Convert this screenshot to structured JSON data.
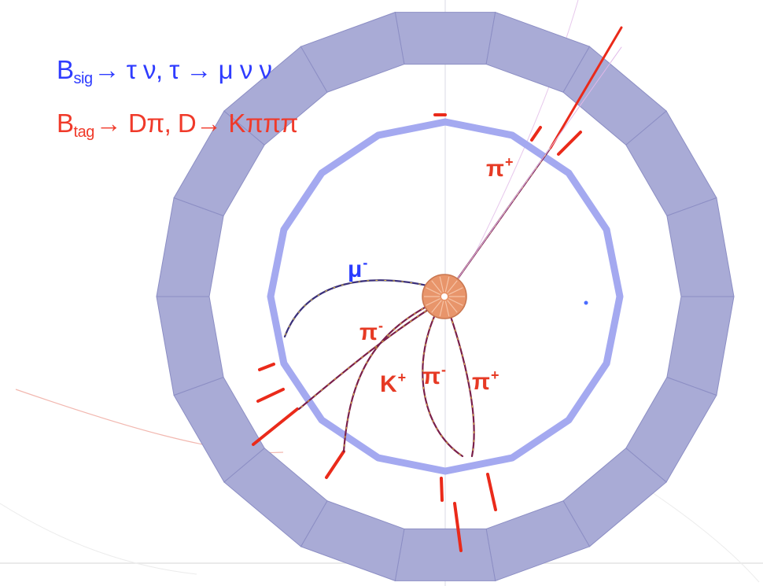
{
  "decay": {
    "sig": {
      "b": "B",
      "sub": "sig",
      "rest": "→ τ ν, τ → μ ν ν"
    },
    "tag": {
      "b": "B",
      "sub": "tag",
      "rest": "→ Dπ, D→ Kπππ"
    }
  },
  "labels": {
    "pi_plus_top": {
      "base": "π",
      "sup": "+"
    },
    "mu_minus": {
      "base": "μ",
      "sup": "-"
    },
    "pi_minus_left": {
      "base": "π",
      "sup": "-"
    },
    "k_plus": {
      "base": "K",
      "sup": "+"
    },
    "pi_minus_mid": {
      "base": "π",
      "sup": "-"
    },
    "pi_plus_right": {
      "base": "π",
      "sup": "+"
    }
  },
  "colors": {
    "outer_ring": "#a9abd6",
    "outer_ring_seam": "#8c8ec4",
    "inner_ring": "#a4a9f0",
    "interaction_point": "#e8956b",
    "track": "#7a1f4a",
    "track_highlight": "#e6c23a",
    "hit_segment": "#ea2a1a",
    "sig_text": "#2f3cff",
    "tag_text": "#f03a2a"
  }
}
